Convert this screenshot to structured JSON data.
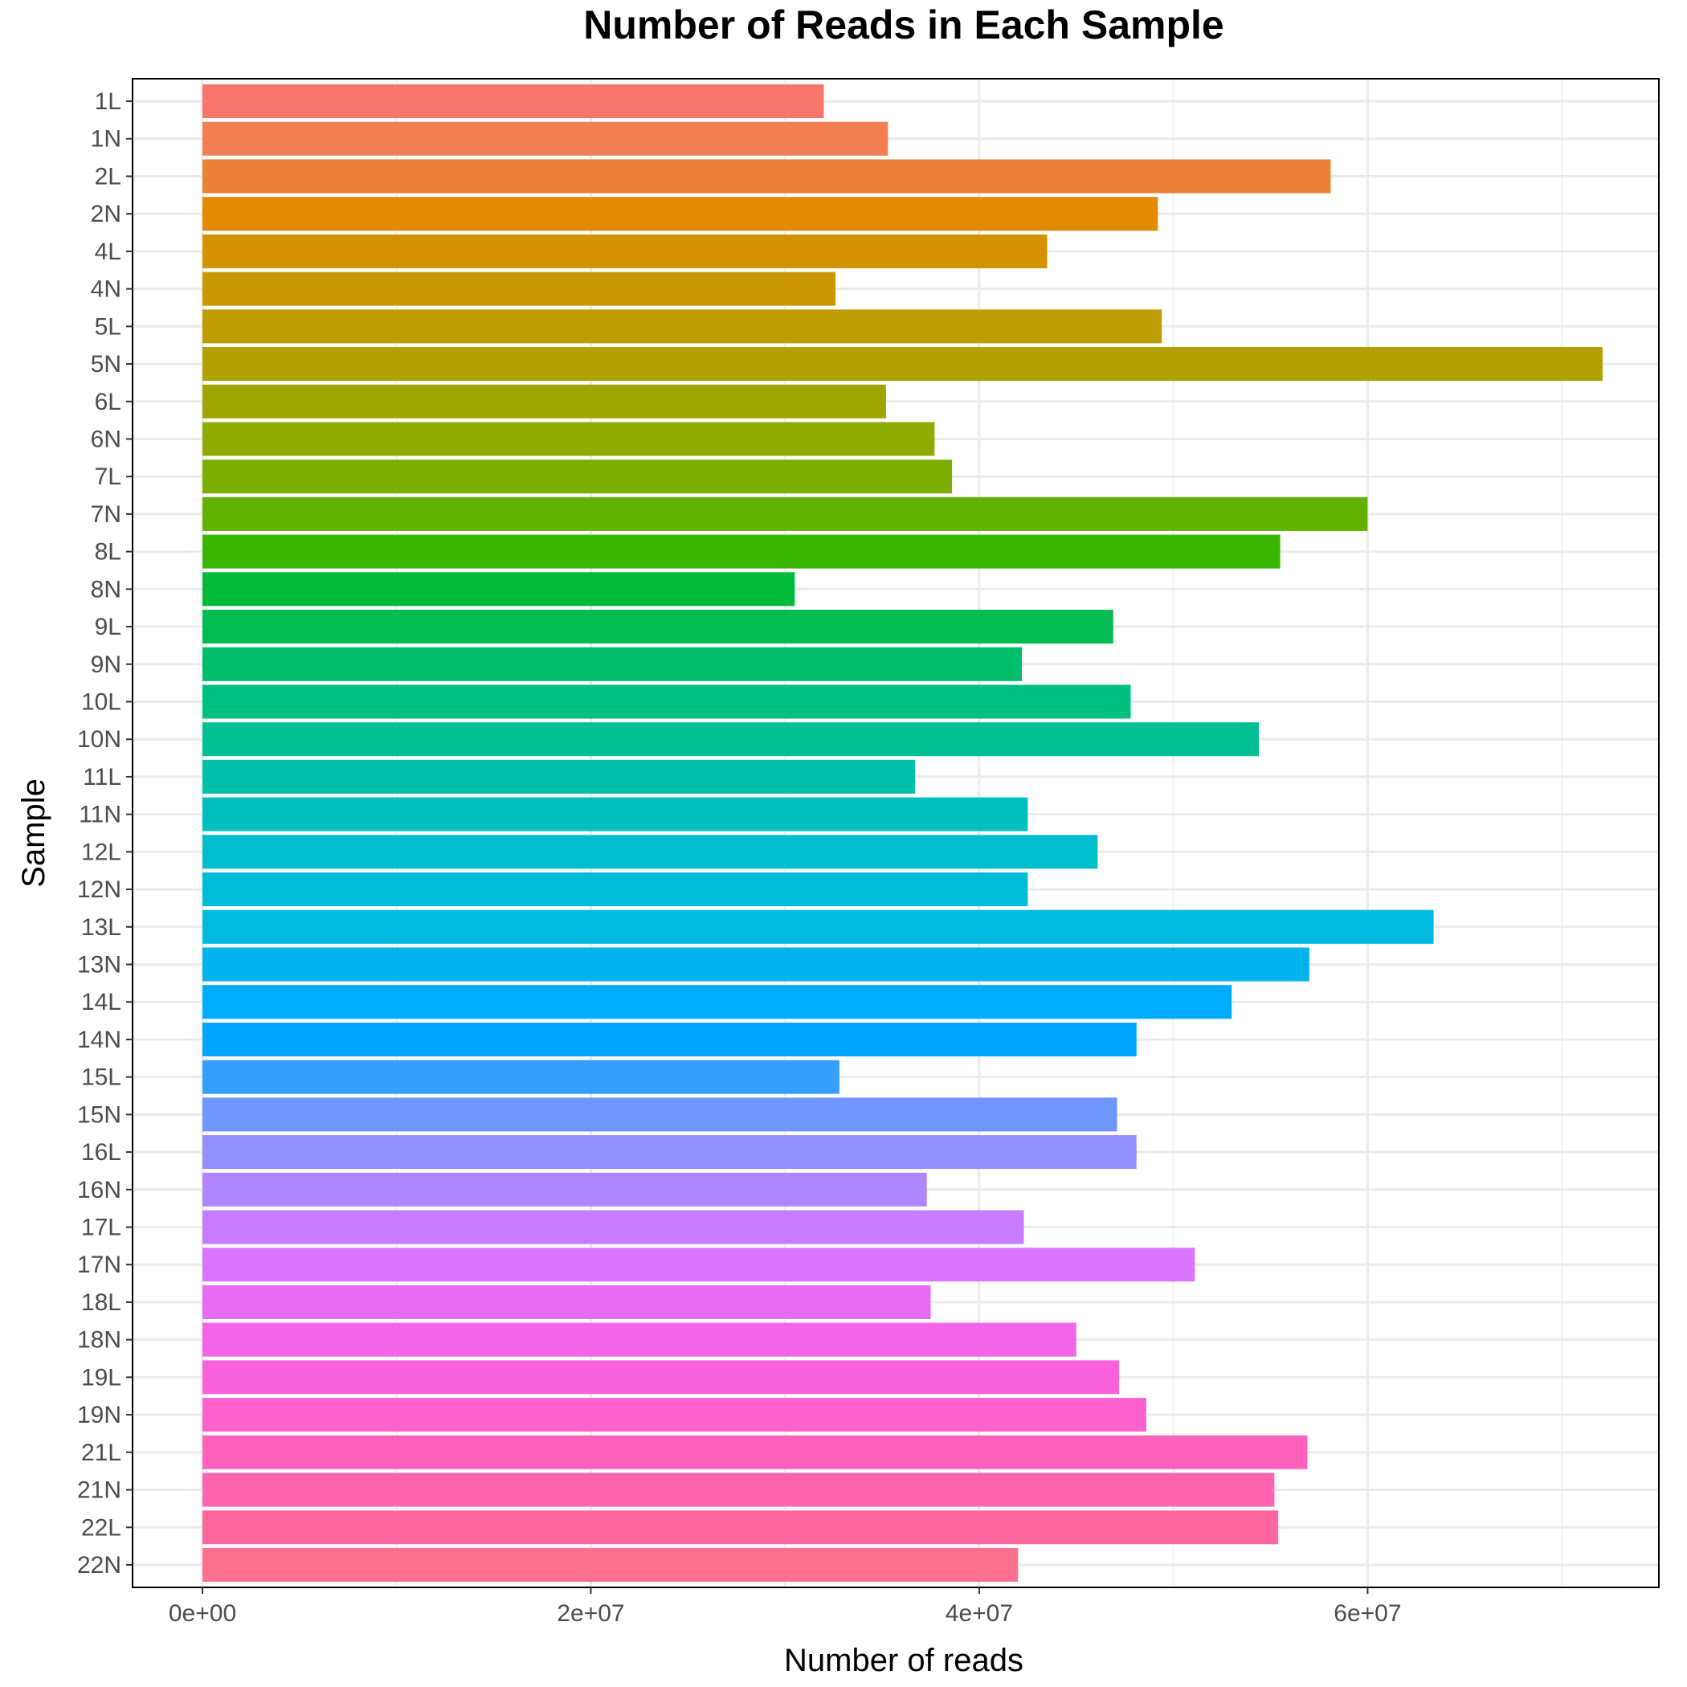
{
  "chart_data": {
    "type": "bar",
    "orientation": "horizontal",
    "title": "Number of Reads in Each Sample",
    "xlabel": "Number of reads",
    "ylabel": "Sample",
    "xlim": [
      -3600000,
      75000000
    ],
    "x_ticks": [
      0,
      20000000,
      40000000,
      60000000
    ],
    "x_tick_labels": [
      "0e+00",
      "2e+07",
      "4e+07",
      "6e+07"
    ],
    "grid": true,
    "legend": "none",
    "categories": [
      "1L",
      "1N",
      "2L",
      "2N",
      "4L",
      "4N",
      "5L",
      "5N",
      "6L",
      "6N",
      "7L",
      "7N",
      "8L",
      "8N",
      "9L",
      "9N",
      "10L",
      "10N",
      "11L",
      "11N",
      "12L",
      "12N",
      "13L",
      "13N",
      "14L",
      "14N",
      "15L",
      "15N",
      "16L",
      "16N",
      "17L",
      "17N",
      "18L",
      "18N",
      "19L",
      "19N",
      "21L",
      "21N",
      "22L",
      "22N"
    ],
    "values": [
      32000000,
      35300000,
      58100000,
      49200000,
      43500000,
      32600000,
      49400000,
      72100000,
      35200000,
      37700000,
      38600000,
      60000000,
      55500000,
      30500000,
      46900000,
      42200000,
      47800000,
      54400000,
      36700000,
      42500000,
      46100000,
      42500000,
      63400000,
      57000000,
      53000000,
      48100000,
      32800000,
      47100000,
      48100000,
      37300000,
      42300000,
      51100000,
      37500000,
      45000000,
      47200000,
      48600000,
      56900000,
      55200000,
      55400000,
      42000000
    ],
    "colors": [
      "#F8766D",
      "#F17F53",
      "#EC8239",
      "#E18A00",
      "#D59200",
      "#C99800",
      "#BD9D00",
      "#B0A100",
      "#A0A600",
      "#8FAA00",
      "#7CAE00",
      "#63B200",
      "#39B600",
      "#00BA38",
      "#00BC53",
      "#00BE6C",
      "#00C081",
      "#00C094",
      "#00C0A9",
      "#00BFBC",
      "#00BECB",
      "#00BDD7",
      "#00BAE0",
      "#00B3EC",
      "#00ACFC",
      "#00A5FF",
      "#359EFF",
      "#6F96FF",
      "#9590FF",
      "#AE87FF",
      "#C77CFF",
      "#D874FD",
      "#E76BF3",
      "#F265E7",
      "#FA62DB",
      "#FF61CC",
      "#FF62BC",
      "#FF65AE",
      "#FF689F",
      "#FC718E"
    ]
  }
}
